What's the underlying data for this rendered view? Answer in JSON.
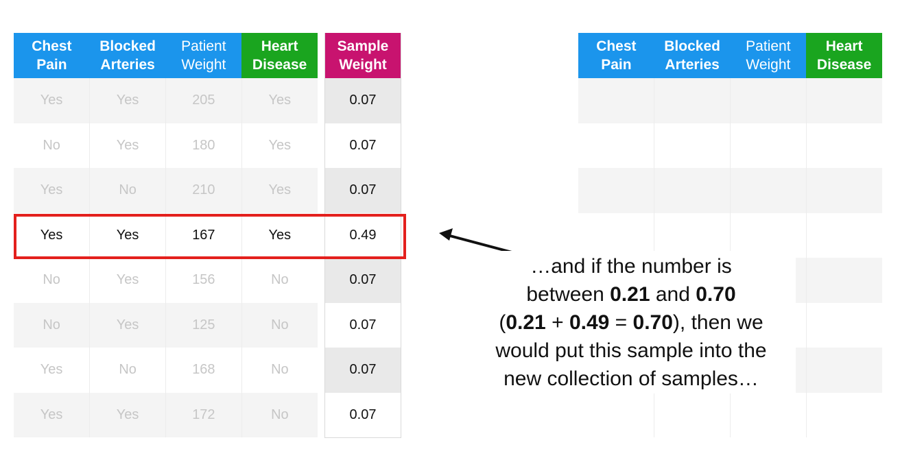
{
  "left_table": {
    "headers": [
      {
        "line1": "Chest",
        "line2": "Pain"
      },
      {
        "line1": "Blocked",
        "line2": "Arteries"
      },
      {
        "line1": "Patient",
        "line2": "Weight"
      },
      {
        "line1": "Heart",
        "line2": "Disease"
      }
    ],
    "rows": [
      [
        "Yes",
        "Yes",
        "205",
        "Yes"
      ],
      [
        "No",
        "Yes",
        "180",
        "Yes"
      ],
      [
        "Yes",
        "No",
        "210",
        "Yes"
      ],
      [
        "Yes",
        "Yes",
        "167",
        "Yes"
      ],
      [
        "No",
        "Yes",
        "156",
        "No"
      ],
      [
        "No",
        "Yes",
        "125",
        "No"
      ],
      [
        "Yes",
        "No",
        "168",
        "No"
      ],
      [
        "Yes",
        "Yes",
        "172",
        "No"
      ]
    ]
  },
  "weight_table": {
    "header": {
      "line1": "Sample",
      "line2": "Weight"
    },
    "values": [
      "0.07",
      "0.07",
      "0.07",
      "0.49",
      "0.07",
      "0.07",
      "0.07",
      "0.07"
    ]
  },
  "right_table": {
    "headers": [
      {
        "line1": "Chest",
        "line2": "Pain"
      },
      {
        "line1": "Blocked",
        "line2": "Arteries"
      },
      {
        "line1": "Patient",
        "line2": "Weight"
      },
      {
        "line1": "Heart",
        "line2": "Disease"
      }
    ]
  },
  "caption": {
    "l1": "…and if the number is",
    "l2a": "between ",
    "l2b": "0.21",
    "l2c": " and ",
    "l2d": "0.70",
    "l3a": "(",
    "l3b": "0.21",
    "l3c": " + ",
    "l3d": "0.49",
    "l3e": " = ",
    "l3f": "0.70",
    "l3g": "), then we",
    "l4": "would put this sample into the",
    "l5": "new collection of samples…"
  },
  "colors": {
    "header_blue": "#1b95ec",
    "header_green": "#1aa51f",
    "header_magenta": "#c8136f",
    "highlight_red": "#e3201d"
  }
}
